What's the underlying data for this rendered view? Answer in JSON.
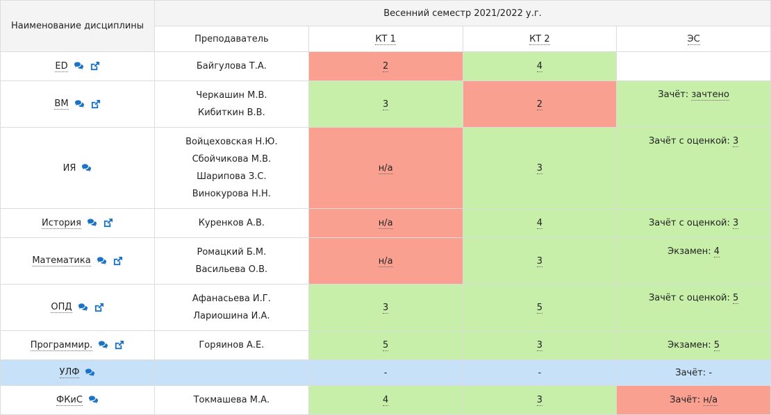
{
  "header": {
    "subject_col": "Наименование дисциплины",
    "semester": "Весенний семестр 2021/2022 у.г.",
    "teacher_col": "Преподаватель",
    "kt1": "КТ 1",
    "kt2": "КТ 2",
    "es": "ЭС"
  },
  "rows": [
    {
      "subject": "ED",
      "teachers": [
        "Байгулова Т.А."
      ],
      "kt1": "2",
      "kt2": "4",
      "es_label": "",
      "es_value": ""
    },
    {
      "subject": "ВМ",
      "teachers": [
        "Черкашин М.В.",
        "Кибиткин В.В."
      ],
      "kt1": "3",
      "kt2": "2",
      "es_label": "Зачёт:",
      "es_value": "зачтено"
    },
    {
      "subject": "ИЯ",
      "teachers": [
        "Войцеховская Н.Ю.",
        "Сбойчикова М.В.",
        "Шарипова З.С.",
        "Винокурова Н.Н."
      ],
      "kt1": "н/а",
      "kt2": "3",
      "es_label": "Зачёт с оценкой:",
      "es_value": "3"
    },
    {
      "subject": "История",
      "teachers": [
        "Куренков А.В."
      ],
      "kt1": "н/а",
      "kt2": "4",
      "es_label": "Зачёт с оценкой:",
      "es_value": "3"
    },
    {
      "subject": "Математика",
      "teachers": [
        "Ромацкий Б.М.",
        "Васильева О.В."
      ],
      "kt1": "н/а",
      "kt2": "3",
      "es_label": "Экзамен:",
      "es_value": "4"
    },
    {
      "subject": "ОПД",
      "teachers": [
        "Афанасьева И.Г.",
        "Лариошина И.А."
      ],
      "kt1": "3",
      "kt2": "5",
      "es_label": "Зачёт с оценкой:",
      "es_value": "5"
    },
    {
      "subject": "Программир.",
      "teachers": [
        "Горяинов А.Е."
      ],
      "kt1": "5",
      "kt2": "3",
      "es_label": "Экзамен:",
      "es_value": "5"
    },
    {
      "subject": "УЛФ",
      "teachers": [],
      "kt1": "-",
      "kt2": "-",
      "es_label": "Зачёт:",
      "es_value": "-"
    },
    {
      "subject": "ФКиС",
      "teachers": [
        "Токмашева М.А."
      ],
      "kt1": "4",
      "kt2": "3",
      "es_label": "Зачёт:",
      "es_value": "н/а"
    }
  ],
  "colors": {
    "fail": "#f9a090",
    "pass": "#c7efa9",
    "none": "#c6e1f8",
    "icon": "#1b73c8"
  },
  "icons": [
    "comments-icon",
    "external-link-icon"
  ]
}
